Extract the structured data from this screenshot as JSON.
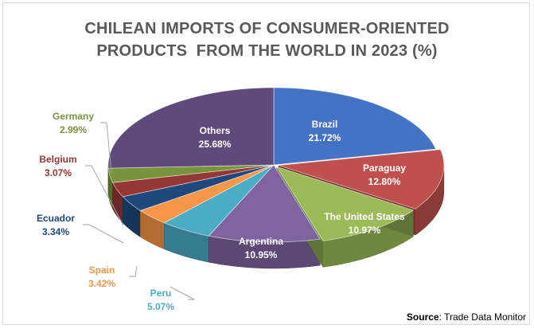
{
  "title_lines": [
    "CHILEAN IMPORTS OF CONSUMER-ORIENTED",
    "PRODUCTS  FROM THE WORLD IN 2023 (%)"
  ],
  "source": {
    "label": "Source",
    "text": ": Trade Data Monitor"
  },
  "chart_data": {
    "type": "pie",
    "style": "3d-exploded",
    "title": "CHILEAN IMPORTS OF CONSUMER-ORIENTED PRODUCTS  FROM THE WORLD IN 2023 (%)",
    "slices": [
      {
        "label": "Brazil",
        "value": 21.72,
        "display": "21.72%",
        "color": "#4472c4"
      },
      {
        "label": "Paraguay",
        "value": 12.8,
        "display": "12.80%",
        "color": "#c0504d"
      },
      {
        "label": "The United States",
        "value": 10.97,
        "display": "10.97%",
        "color": "#9bbb59"
      },
      {
        "label": "Argentina",
        "value": 10.95,
        "display": "10.95%",
        "color": "#8064a2"
      },
      {
        "label": "Peru",
        "value": 5.07,
        "display": "5.07%",
        "color": "#4bacc6"
      },
      {
        "label": "Spain",
        "value": 3.42,
        "display": "3.42%",
        "color": "#f79646"
      },
      {
        "label": "Ecuador",
        "value": 3.34,
        "display": "3.34%",
        "color": "#1f497d"
      },
      {
        "label": "Belgium",
        "value": 3.07,
        "display": "3.07%",
        "color": "#953735"
      },
      {
        "label": "Germany",
        "value": 2.99,
        "display": "2.99%",
        "color": "#77933c"
      },
      {
        "label": "Others",
        "value": 25.68,
        "display": "25.68%",
        "color": "#604a7b"
      }
    ]
  }
}
